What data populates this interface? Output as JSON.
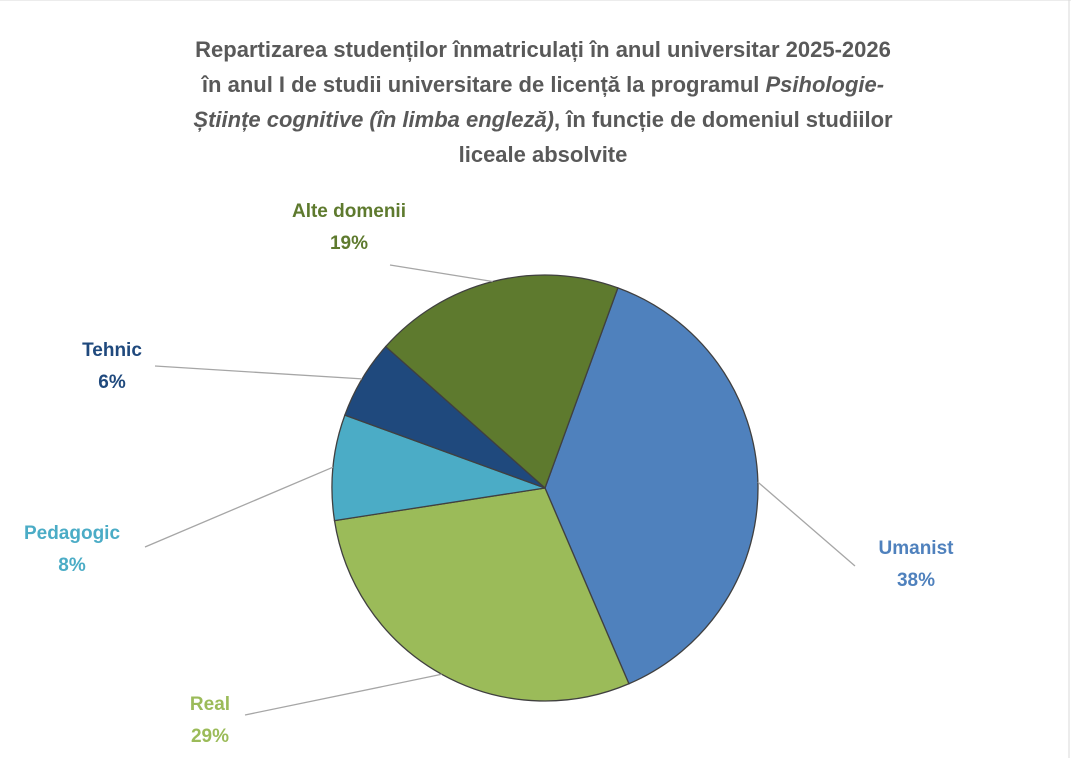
{
  "chart_data": {
    "type": "pie",
    "title_lines": [
      [
        {
          "text": "Repartizarea studenților înmatriculați în anul universitar 2025-2026",
          "italic": false
        }
      ],
      [
        {
          "text": "în anul I de studii universitare de licență la programul ",
          "italic": false
        },
        {
          "text": "Psihologie-",
          "italic": true
        }
      ],
      [
        {
          "text": "Științe cognitive (în limba engleză)",
          "italic": true
        },
        {
          "text": ", în funcție de domeniul studiilor",
          "italic": false
        }
      ],
      [
        {
          "text": "liceale absolvite",
          "italic": false
        }
      ]
    ],
    "start_angle_deg": 20,
    "direction": "clockwise",
    "slices": [
      {
        "category": "Umanist",
        "value": 38,
        "value_label": "38%",
        "color": "#4F81BD"
      },
      {
        "category": "Real",
        "value": 29,
        "value_label": "29%",
        "color": "#9BBB59"
      },
      {
        "category": "Pedagogic",
        "value": 8,
        "value_label": "8%",
        "color": "#4BACC6"
      },
      {
        "category": "Tehnic",
        "value": 6,
        "value_label": "6%",
        "color": "#1F497D"
      },
      {
        "category": "Alte domenii",
        "value": 19,
        "value_label": "19%",
        "color": "#5E7A2E"
      }
    ],
    "label_colors": {
      "Umanist": "#4F81BD",
      "Real": "#9BBB59",
      "Pedagogic": "#4BACC6",
      "Tehnic": "#1F497D",
      "Alte domenii": "#5E7A2E"
    }
  }
}
